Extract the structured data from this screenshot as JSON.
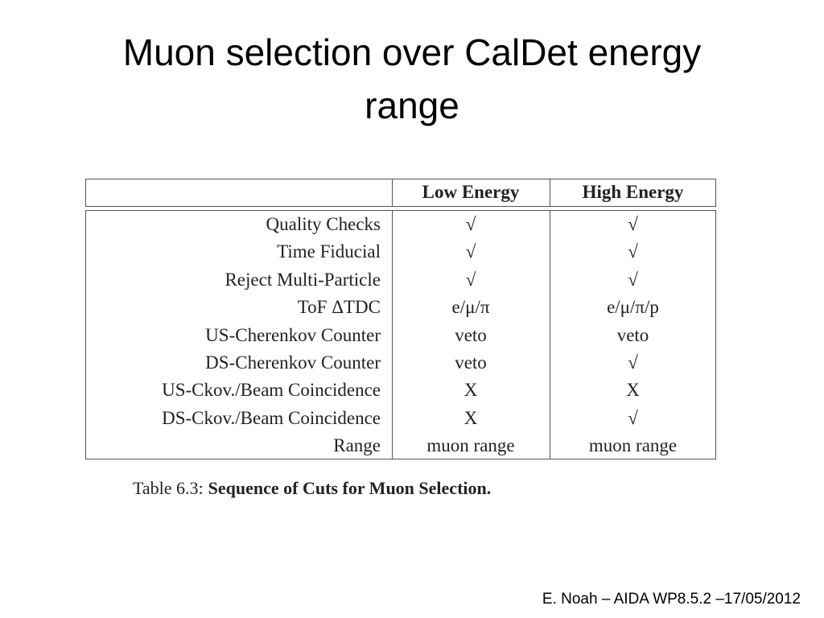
{
  "title": "Muon selection over CalDet energy range",
  "table": {
    "columns": [
      "Low Energy",
      "High Energy"
    ],
    "rows": [
      [
        "Quality Checks",
        "√",
        "√"
      ],
      [
        "Time Fiducial",
        "√",
        "√"
      ],
      [
        "Reject Multi-Particle",
        "√",
        "√"
      ],
      [
        "ToF ΔTDC",
        "e/μ/π",
        "e/μ/π/p"
      ],
      [
        "US-Cherenkov Counter",
        "veto",
        "veto"
      ],
      [
        "DS-Cherenkov Counter",
        "veto",
        "√"
      ],
      [
        "US-Ckov./Beam Coincidence",
        "X",
        "X"
      ],
      [
        "DS-Ckov./Beam Coincidence",
        "X",
        "√"
      ],
      [
        "Range",
        "muon range",
        "muon range"
      ]
    ]
  },
  "caption": {
    "label": "Table 6.3:",
    "text": "Sequence of Cuts for Muon Selection."
  },
  "footer": "E. Noah – AIDA WP8.5.2 –17/05/2012"
}
